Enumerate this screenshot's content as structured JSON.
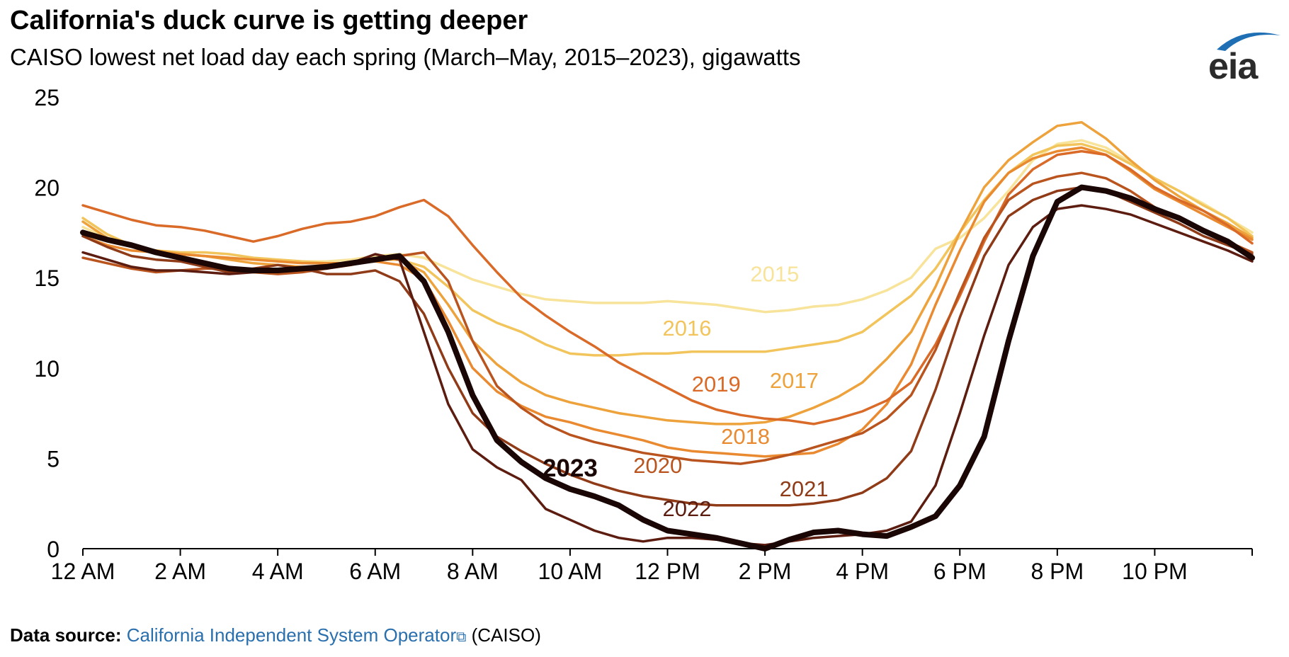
{
  "title": "California's duck curve is getting deeper",
  "subtitle": "CAISO lowest net load day each spring (March–May, 2015–2023), gigawatts",
  "logo": {
    "text": "eia",
    "arc_color": "#1f6fb5"
  },
  "footer": {
    "label": "Data source:",
    "link_text": "California Independent System Operator",
    "link_icon": "external-link-icon",
    "suffix": "(CAISO)",
    "link_color": "#2a6fad"
  },
  "chart_data": {
    "type": "line",
    "ylim": [
      0,
      25
    ],
    "xlim": [
      0,
      24
    ],
    "grid": false,
    "y_ticks": [
      0,
      5,
      10,
      15,
      20,
      25
    ],
    "y_tick_labels": [
      "0",
      "5",
      "10",
      "15",
      "20",
      "25"
    ],
    "x_ticks": [
      0,
      2,
      4,
      6,
      8,
      10,
      12,
      14,
      16,
      18,
      20,
      22
    ],
    "x_tick_labels": [
      "12 AM",
      "2 AM",
      "4 AM",
      "6 AM",
      "8 AM",
      "10 AM",
      "12 PM",
      "2 PM",
      "4 PM",
      "6 PM",
      "8 PM",
      "10 PM"
    ],
    "x": [
      0,
      0.5,
      1,
      1.5,
      2,
      2.5,
      3,
      3.5,
      4,
      4.5,
      5,
      5.5,
      6,
      6.5,
      7,
      7.5,
      8,
      8.5,
      9,
      9.5,
      10,
      10.5,
      11,
      11.5,
      12,
      12.5,
      13,
      13.5,
      14,
      14.5,
      15,
      15.5,
      16,
      16.5,
      17,
      17.5,
      18,
      18.5,
      19,
      19.5,
      20,
      20.5,
      21,
      21.5,
      22,
      22.5,
      23,
      23.5,
      24
    ],
    "series": [
      {
        "name": "2015",
        "color": "#f8e39a",
        "width": 3.5,
        "bold": false,
        "values": [
          17.8,
          17.2,
          16.8,
          16.5,
          16.3,
          16.2,
          16.1,
          16.0,
          16.0,
          15.9,
          15.9,
          16.0,
          16.2,
          16.3,
          16.1,
          15.5,
          14.9,
          14.5,
          14.1,
          13.8,
          13.7,
          13.6,
          13.6,
          13.6,
          13.7,
          13.6,
          13.5,
          13.3,
          13.1,
          13.2,
          13.4,
          13.5,
          13.8,
          14.3,
          15.0,
          16.6,
          17.2,
          18.3,
          19.8,
          21.5,
          22.4,
          22.6,
          22.2,
          21.4,
          20.5,
          19.8,
          19.1,
          18.3,
          17.5
        ]
      },
      {
        "name": "2016",
        "color": "#f2c45c",
        "width": 3.5,
        "bold": false,
        "values": [
          18.3,
          17.4,
          16.8,
          16.5,
          16.4,
          16.4,
          16.3,
          16.1,
          16.0,
          15.9,
          15.8,
          15.8,
          16.0,
          16.0,
          15.6,
          14.5,
          13.2,
          12.5,
          12.0,
          11.3,
          10.8,
          10.7,
          10.7,
          10.8,
          10.8,
          10.9,
          10.9,
          10.9,
          10.9,
          11.1,
          11.3,
          11.5,
          12.0,
          13.0,
          14.0,
          15.5,
          17.5,
          19.3,
          20.8,
          21.8,
          22.3,
          22.4,
          22.0,
          21.3,
          20.5,
          19.8,
          19.0,
          18.3,
          17.3
        ]
      },
      {
        "name": "2017",
        "color": "#eda23b",
        "width": 3.5,
        "bold": false,
        "values": [
          18.1,
          17.2,
          16.7,
          16.5,
          16.3,
          16.2,
          16.0,
          15.8,
          15.7,
          15.6,
          15.6,
          15.7,
          16.0,
          16.0,
          15.3,
          13.5,
          11.5,
          10.2,
          9.2,
          8.5,
          8.1,
          7.8,
          7.5,
          7.3,
          7.1,
          7.0,
          6.9,
          6.9,
          7.0,
          7.3,
          7.8,
          8.4,
          9.2,
          10.5,
          12.0,
          14.5,
          17.5,
          20.0,
          21.5,
          22.5,
          23.4,
          23.6,
          22.7,
          21.5,
          20.4,
          19.5,
          18.7,
          18.0,
          17.2
        ]
      },
      {
        "name": "2018",
        "color": "#e98a30",
        "width": 3.5,
        "bold": false,
        "values": [
          17.3,
          16.8,
          16.5,
          16.4,
          16.3,
          16.2,
          16.1,
          16.0,
          15.9,
          15.8,
          15.8,
          15.8,
          15.9,
          15.7,
          14.9,
          12.6,
          10.0,
          8.7,
          7.9,
          7.3,
          7.0,
          6.6,
          6.3,
          6.0,
          5.6,
          5.4,
          5.3,
          5.2,
          5.1,
          5.2,
          5.3,
          5.8,
          6.6,
          8.0,
          10.2,
          13.5,
          16.5,
          19.2,
          20.8,
          21.6,
          22.0,
          22.2,
          21.8,
          20.9,
          19.9,
          19.2,
          18.5,
          17.8,
          17.1
        ]
      },
      {
        "name": "2019",
        "color": "#d96a28",
        "width": 3.5,
        "bold": false,
        "values": [
          19.0,
          18.6,
          18.2,
          17.9,
          17.8,
          17.6,
          17.3,
          17.0,
          17.3,
          17.7,
          18.0,
          18.1,
          18.4,
          18.9,
          19.3,
          18.4,
          16.8,
          15.3,
          13.9,
          12.9,
          12.0,
          11.2,
          10.3,
          9.6,
          8.9,
          8.2,
          7.7,
          7.4,
          7.2,
          7.1,
          6.9,
          7.2,
          7.6,
          8.2,
          9.2,
          11.3,
          14.0,
          17.0,
          19.6,
          21.0,
          21.8,
          22.0,
          21.8,
          21.0,
          20.0,
          19.3,
          18.7,
          17.9,
          16.9
        ]
      },
      {
        "name": "2020",
        "color": "#b9541e",
        "width": 3.5,
        "bold": false,
        "values": [
          16.1,
          15.8,
          15.5,
          15.3,
          15.4,
          15.5,
          15.5,
          15.3,
          15.2,
          15.3,
          15.5,
          15.7,
          16.0,
          16.2,
          16.4,
          14.8,
          11.5,
          9.0,
          7.8,
          6.9,
          6.3,
          5.9,
          5.6,
          5.3,
          5.1,
          4.9,
          4.8,
          4.7,
          4.9,
          5.2,
          5.6,
          6.0,
          6.4,
          7.2,
          8.5,
          11.0,
          14.2,
          17.2,
          19.3,
          20.2,
          20.6,
          20.8,
          20.5,
          19.8,
          18.9,
          18.2,
          17.6,
          17.0,
          16.4
        ]
      },
      {
        "name": "2021",
        "color": "#8f3b18",
        "width": 3.5,
        "bold": false,
        "values": [
          17.3,
          16.7,
          16.2,
          16.0,
          15.9,
          15.6,
          15.3,
          15.5,
          15.7,
          15.5,
          15.2,
          15.2,
          15.4,
          14.8,
          13.0,
          10.0,
          7.5,
          6.2,
          5.4,
          4.7,
          4.1,
          3.6,
          3.2,
          2.9,
          2.7,
          2.5,
          2.4,
          2.4,
          2.4,
          2.4,
          2.5,
          2.7,
          3.1,
          3.9,
          5.4,
          8.8,
          12.8,
          16.2,
          18.4,
          19.3,
          19.8,
          20.0,
          19.8,
          19.2,
          18.6,
          18.0,
          17.3,
          16.8,
          16.3
        ]
      },
      {
        "name": "2022",
        "color": "#5c1d10",
        "width": 3.5,
        "bold": false,
        "values": [
          16.4,
          16.0,
          15.6,
          15.4,
          15.4,
          15.3,
          15.2,
          15.3,
          15.4,
          15.5,
          15.5,
          15.8,
          16.3,
          16.0,
          12.0,
          8.0,
          5.5,
          4.5,
          3.8,
          2.2,
          1.6,
          1.0,
          0.6,
          0.4,
          0.6,
          0.6,
          0.5,
          0.3,
          0.2,
          0.4,
          0.6,
          0.7,
          0.8,
          1.0,
          1.5,
          3.5,
          7.5,
          11.8,
          15.7,
          17.8,
          18.8,
          19.0,
          18.8,
          18.5,
          18.0,
          17.5,
          17.0,
          16.5,
          15.9
        ]
      },
      {
        "name": "2023",
        "color": "#1a0604",
        "width": 8,
        "bold": true,
        "values": [
          17.5,
          17.1,
          16.8,
          16.4,
          16.1,
          15.8,
          15.5,
          15.4,
          15.4,
          15.5,
          15.6,
          15.8,
          16.0,
          16.2,
          14.8,
          12.0,
          8.5,
          6.0,
          4.8,
          3.9,
          3.3,
          2.9,
          2.4,
          1.6,
          1.0,
          0.8,
          0.6,
          0.3,
          0.0,
          0.5,
          0.9,
          1.0,
          0.8,
          0.7,
          1.2,
          1.8,
          3.5,
          6.2,
          11.5,
          16.2,
          19.2,
          20.0,
          19.8,
          19.4,
          18.8,
          18.3,
          17.6,
          17.0,
          16.1
        ]
      }
    ],
    "annotations": [
      {
        "text": "2015",
        "series": "2015",
        "x": 14.2,
        "y": 14.8
      },
      {
        "text": "2016",
        "series": "2016",
        "x": 12.4,
        "y": 11.8
      },
      {
        "text": "2017",
        "series": "2017",
        "x": 14.6,
        "y": 8.9
      },
      {
        "text": "2019",
        "series": "2019",
        "x": 13.0,
        "y": 8.7
      },
      {
        "text": "2018",
        "series": "2018",
        "x": 13.6,
        "y": 5.8
      },
      {
        "text": "2020",
        "series": "2020",
        "x": 11.8,
        "y": 4.2
      },
      {
        "text": "2021",
        "series": "2021",
        "x": 14.8,
        "y": 2.9
      },
      {
        "text": "2022",
        "series": "2022",
        "x": 12.4,
        "y": 1.8
      },
      {
        "text": "2023",
        "series": "2023",
        "x": 10.0,
        "y": 4.0
      }
    ]
  }
}
